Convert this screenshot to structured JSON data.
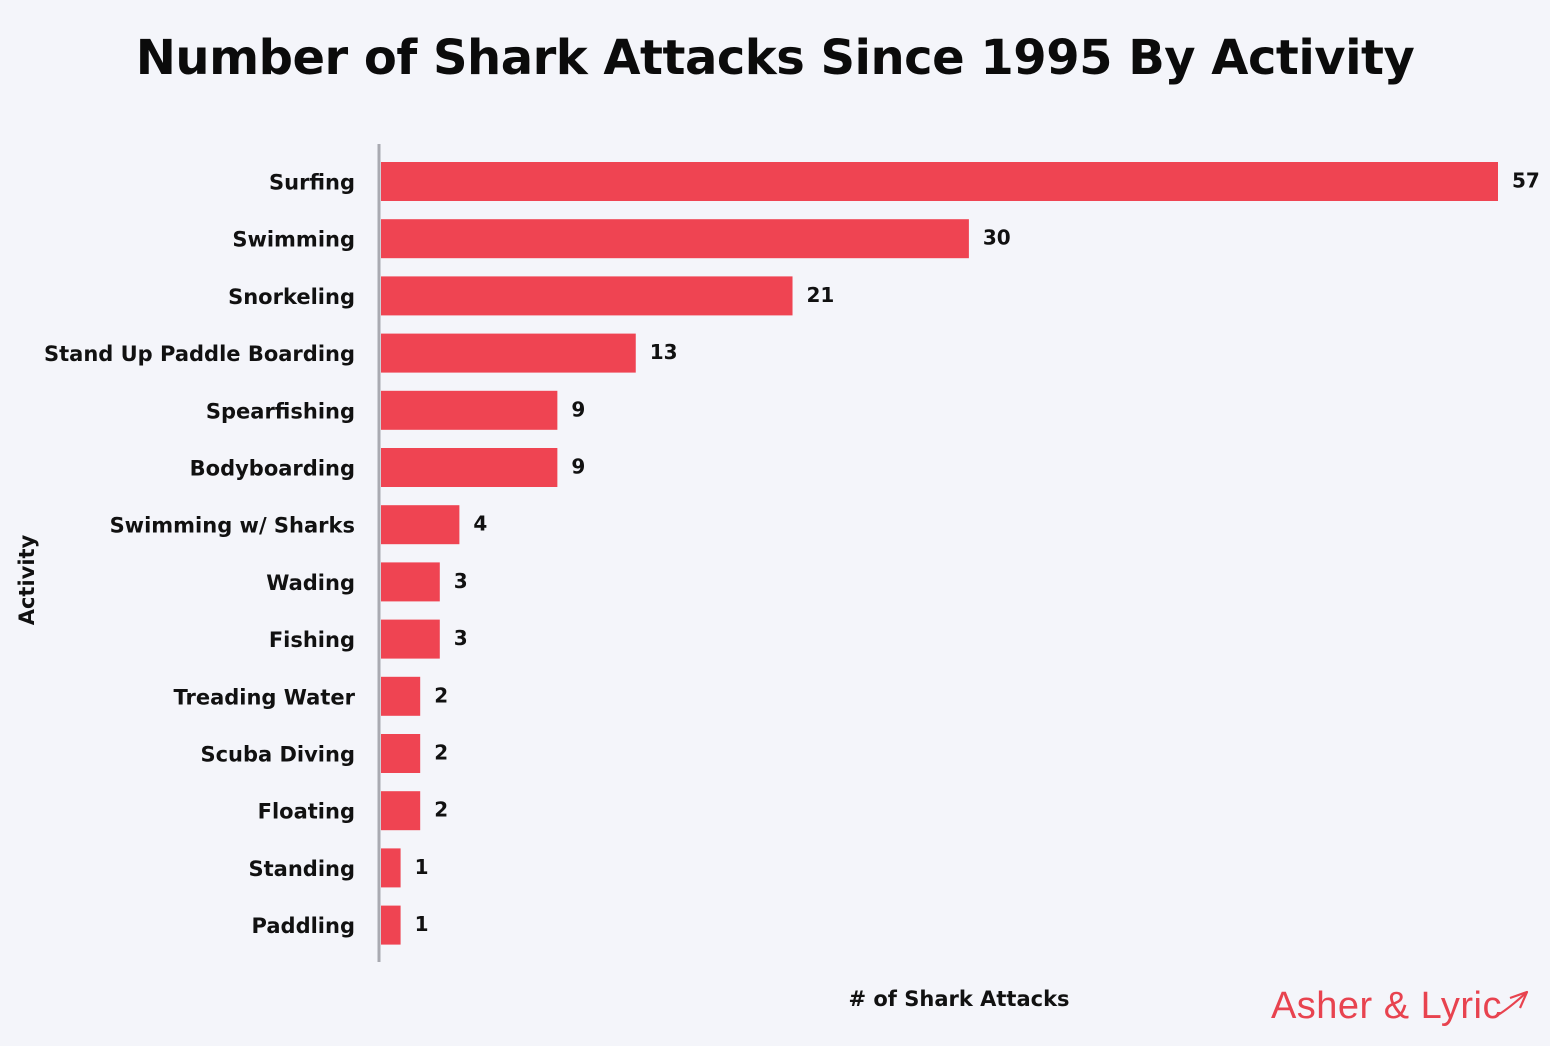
{
  "chart_data": {
    "type": "bar",
    "orientation": "horizontal",
    "title": "Number of Shark Attacks Since 1995 By Activity",
    "xlabel": "# of Shark Attacks",
    "ylabel": "Activity",
    "categories": [
      "Surfing",
      "Swimming",
      "Snorkeling",
      "Stand Up Paddle Boarding",
      "Spearfishing",
      "Bodyboarding",
      "Swimming w/ Sharks",
      "Wading",
      "Fishing",
      "Treading Water",
      "Scuba Diving",
      "Floating",
      "Standing",
      "Paddling"
    ],
    "values": [
      57,
      30,
      21,
      13,
      9,
      9,
      4,
      3,
      3,
      2,
      2,
      2,
      1,
      1
    ],
    "xlim": [
      0,
      57
    ],
    "grid": false,
    "data_labels": true,
    "bar_color": "#ef4452"
  },
  "brand": {
    "name": "Asher & Lyric",
    "icon": "airplane-icon",
    "color": "#e8434f"
  }
}
